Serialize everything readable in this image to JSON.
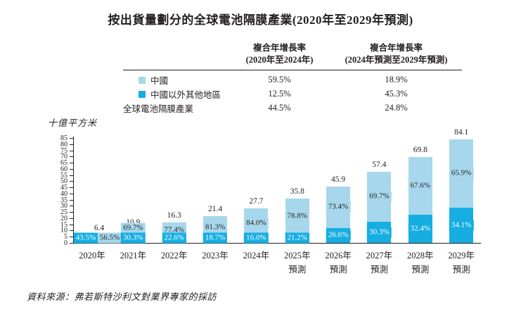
{
  "title": "按出貨量劃分的全球電池隔膜產業(2020年至2029年預測)",
  "y_axis_unit": "十億平方米",
  "source": "資料來源：弗若斯特沙利文對業界專家的採訪",
  "colors": {
    "china": "#A7D7EC",
    "other": "#16AEE2",
    "axis": "#231f20",
    "text": "#231f20",
    "pct_text_on_dark": "#ffffff"
  },
  "cagr_table": {
    "col1_header_line1": "複合年增長率",
    "col1_header_line2": "(2020年至2024年)",
    "col2_header_line1": "複合年增長率",
    "col2_header_line2": "(2024年預測至2029年預測)",
    "rows": [
      {
        "label": "中國",
        "swatch": "china",
        "col1": "59.5%",
        "col2": "18.9%"
      },
      {
        "label": "中國以外其他地區",
        "swatch": "other",
        "col1": "12.5%",
        "col2": "45.3%"
      },
      {
        "label": "全球電池隔膜產業",
        "swatch": null,
        "col1": "44.5%",
        "col2": "24.8%"
      }
    ]
  },
  "chart_data": {
    "type": "bar",
    "stacked": true,
    "title": "按出貨量劃分的全球電池隔膜產業(2020年至2029年預測)",
    "ylabel": "十億平方米",
    "ylim": [
      0,
      85
    ],
    "ytick_step": 5,
    "grid": false,
    "legend_position": "in-table-above-chart",
    "categories": [
      {
        "label": "2020年",
        "sub": ""
      },
      {
        "label": "2021年",
        "sub": ""
      },
      {
        "label": "2022年",
        "sub": ""
      },
      {
        "label": "2023年",
        "sub": ""
      },
      {
        "label": "2024年",
        "sub": ""
      },
      {
        "label": "2025年",
        "sub": "預測"
      },
      {
        "label": "2026年",
        "sub": "預測"
      },
      {
        "label": "2027年",
        "sub": "預測"
      },
      {
        "label": "2028年",
        "sub": "預測"
      },
      {
        "label": "2029年",
        "sub": "預測"
      }
    ],
    "totals": [
      6.4,
      10.9,
      16.3,
      21.4,
      27.7,
      35.8,
      45.9,
      57.4,
      69.8,
      84.1
    ],
    "series": [
      {
        "name": "中國",
        "color": "#A7D7EC",
        "pct": [
          56.5,
          69.7,
          77.4,
          81.3,
          84.0,
          78.8,
          73.4,
          69.7,
          67.6,
          65.9
        ]
      },
      {
        "name": "中國以外其他地區",
        "color": "#16AEE2",
        "pct": [
          43.5,
          30.3,
          22.6,
          18.7,
          16.0,
          21.2,
          26.6,
          30.3,
          32.4,
          34.1
        ]
      }
    ]
  }
}
